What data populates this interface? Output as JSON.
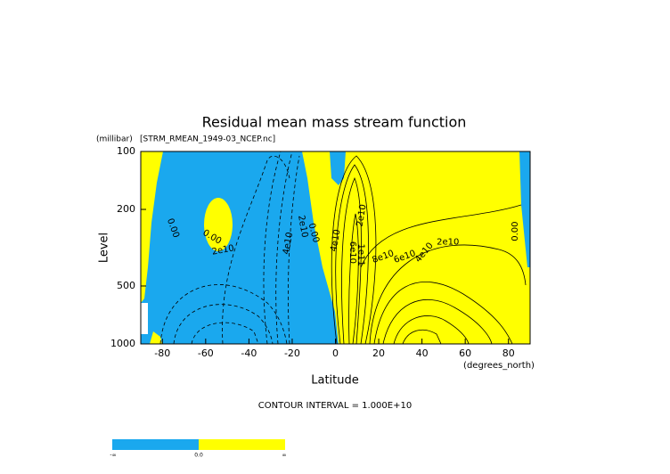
{
  "chart_data": {
    "type": "contour",
    "title": "Residual mean mass stream function",
    "subtitle": "[STRM_RMEAN_1949-03_NCEP.nc]",
    "y_unit": "(millibar)",
    "x_unit": "(degrees_north)",
    "xlabel": "Latitude",
    "ylabel": "Level",
    "footer": "CONTOUR INTERVAL = 1.000E+10",
    "xlim": [
      -90,
      90
    ],
    "xticks": [
      -80,
      -60,
      -40,
      -20,
      0,
      20,
      40,
      60,
      80
    ],
    "ylim": [
      1000,
      100
    ],
    "ylog": true,
    "yticks": [
      100,
      200,
      500,
      1000
    ],
    "negative_color": "#1aa8ee",
    "positive_color": "#ffff00",
    "contour_labels": [
      "0.00",
      "0.00",
      "2e10",
      "4e10",
      "2e10",
      "0.00",
      "2e10",
      "4e10",
      "6e10",
      "1e11",
      "8e10",
      "6e10",
      "4e10",
      "2e10",
      "0.00"
    ],
    "colorbar_labels": [
      "-∞",
      "0.0",
      "∞"
    ]
  }
}
